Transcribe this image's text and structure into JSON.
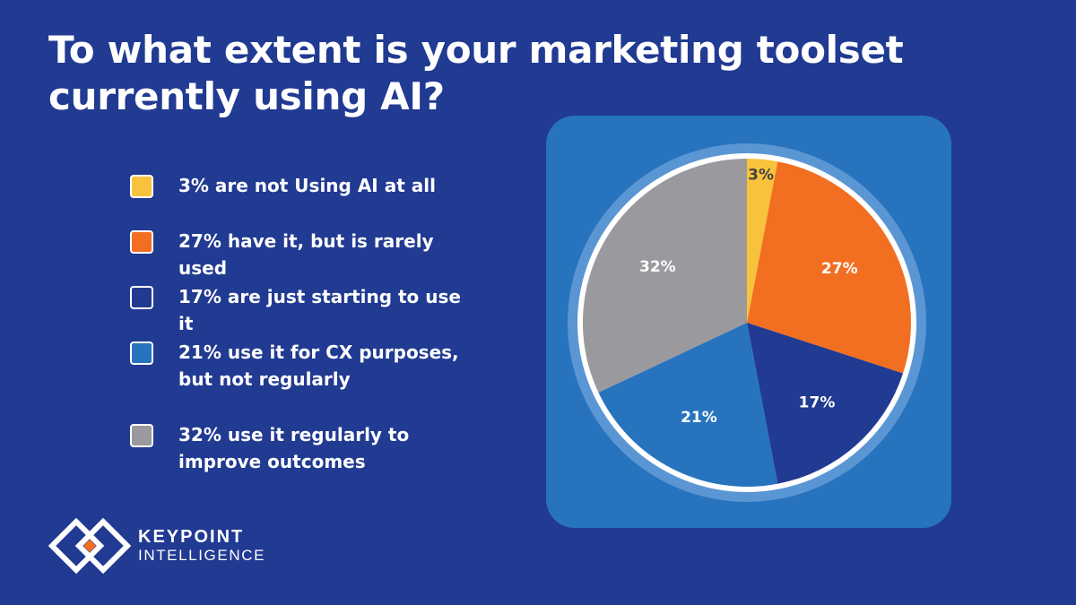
{
  "title": "To what extent is your marketing toolset currently using AI?",
  "legend": [
    {
      "text": "3% are not Using AI at all",
      "color": "#f9c23c"
    },
    {
      "text": "27% have it, but is rarely used",
      "color": "#f26f21"
    },
    {
      "text": "17% are just starting to use it",
      "color": "#213a92"
    },
    {
      "text": "21% use it for CX purposes, but not regularly",
      "color": "#2773be"
    },
    {
      "text": "32% use it regularly to improve outcomes",
      "color": "#9a9a9e"
    }
  ],
  "chart_data": {
    "type": "pie",
    "categories": [
      "are not Using AI at all",
      "have it, but is rarely used",
      "are just starting to use it",
      "use it for CX purposes, but not regularly",
      "use it regularly to improve outcomes"
    ],
    "values": [
      3,
      27,
      17,
      21,
      32
    ],
    "labels": [
      "3%",
      "27%",
      "17%",
      "21%",
      "32%"
    ],
    "colors": [
      "#f9c23c",
      "#f26f21",
      "#213a92",
      "#2773be",
      "#9a9a9e"
    ],
    "label_colors": [
      "#444444",
      "#ffffff",
      "#ffffff",
      "#ffffff",
      "#ffffff"
    ],
    "title": "To what extent is your marketing toolset currently using AI?",
    "legend": "left"
  },
  "logo": {
    "line1": "KEYPOINT",
    "line2": "INTELLIGENCE"
  }
}
